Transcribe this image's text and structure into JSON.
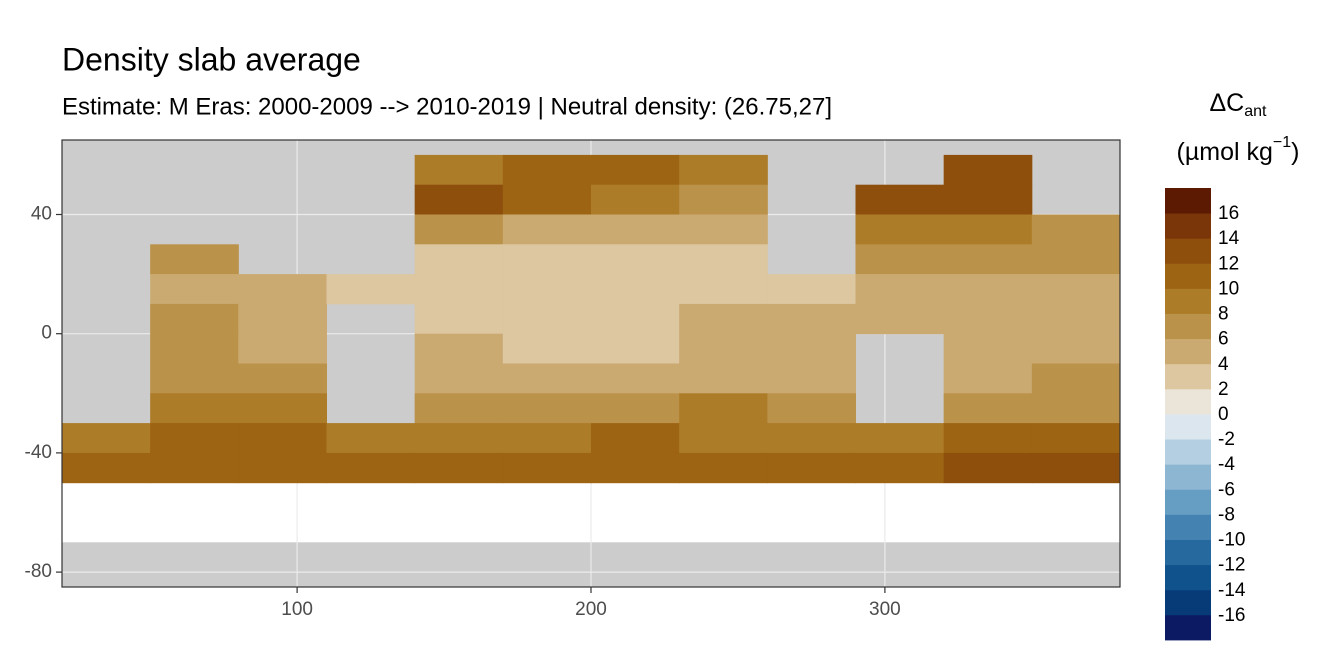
{
  "chart_data": {
    "type": "raster",
    "title": "Density slab average",
    "subtitle": "Estimate: M Eras: 2000-2009 --> 2010-2019 | Neutral density: (26.75,27]",
    "legend": {
      "title": "ΔC",
      "title_sub": "ant",
      "title_unit": "(µmol kg",
      "title_sup": "−1",
      "title_end": ")",
      "edges": [
        -18,
        -16,
        -14,
        -12,
        -10,
        -8,
        -6,
        -4,
        -2,
        0,
        2,
        4,
        6,
        8,
        10,
        12,
        14,
        16,
        18
      ],
      "colors": [
        "#0b1a62",
        "#073b78",
        "#10528c",
        "#26699f",
        "#4482b2",
        "#659dc3",
        "#8db6d2",
        "#b4cfe2",
        "#dbe6ee",
        "#ebe5d9",
        "#dcc7a0",
        "#cbaa72",
        "#bb9249",
        "#ad7c28",
        "#9d6413",
        "#8e4f0d",
        "#7a3508",
        "#5c1a03"
      ],
      "ticks": [
        -16,
        -14,
        -12,
        -10,
        -8,
        -6,
        -4,
        -2,
        0,
        2,
        4,
        6,
        8,
        10,
        12,
        14,
        16
      ]
    },
    "xlim": [
      20,
      380
    ],
    "ylim": [
      -85,
      65
    ],
    "xticks": [
      100,
      200,
      300
    ],
    "yticks": [
      -80,
      -40,
      0,
      40
    ],
    "grid": true,
    "field": {
      "lon_edges": [
        20,
        50,
        80,
        110,
        140,
        170,
        200,
        230,
        260,
        290,
        320,
        350,
        380
      ],
      "lat_edges": [
        60,
        50,
        40,
        30,
        20,
        10,
        0,
        -10,
        -20,
        -30,
        -40,
        -50
      ],
      "values": [
        [
          null,
          null,
          null,
          null,
          8,
          10,
          10,
          8,
          null,
          null,
          12,
          null
        ],
        [
          null,
          null,
          null,
          null,
          12,
          10,
          8,
          6,
          null,
          12,
          12,
          null
        ],
        [
          null,
          null,
          null,
          null,
          6,
          4,
          4,
          4,
          null,
          8,
          8,
          6
        ],
        [
          null,
          6,
          null,
          null,
          2,
          2,
          2,
          2,
          null,
          6,
          6,
          6
        ],
        [
          null,
          4,
          4,
          2,
          2,
          2,
          2,
          2,
          2,
          4,
          4,
          4
        ],
        [
          null,
          6,
          4,
          null,
          2,
          2,
          2,
          4,
          4,
          4,
          4,
          4
        ],
        [
          null,
          6,
          4,
          null,
          4,
          2,
          2,
          4,
          4,
          null,
          4,
          4
        ],
        [
          null,
          6,
          6,
          null,
          4,
          4,
          4,
          4,
          4,
          null,
          4,
          6
        ],
        [
          null,
          8,
          8,
          null,
          6,
          6,
          6,
          8,
          6,
          null,
          6,
          6
        ],
        [
          8,
          10,
          10,
          8,
          8,
          8,
          10,
          8,
          8,
          8,
          10,
          10
        ],
        [
          10,
          10,
          10,
          10,
          10,
          10,
          10,
          10,
          10,
          10,
          12,
          12
        ]
      ]
    }
  }
}
